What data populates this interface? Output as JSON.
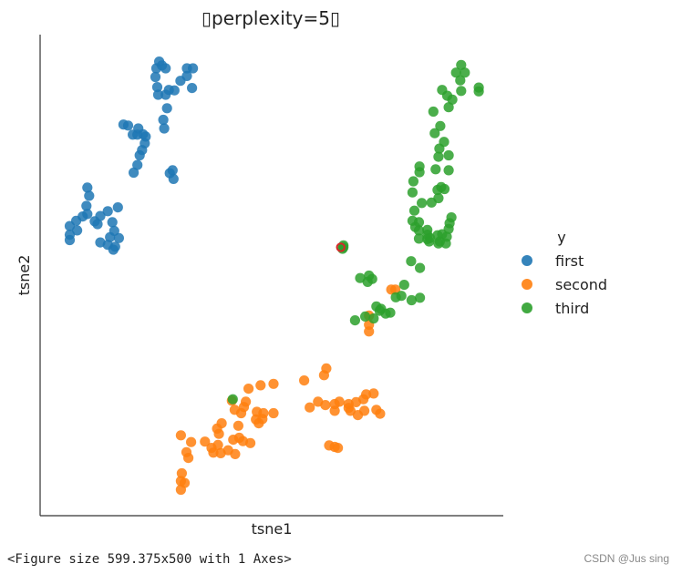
{
  "chart_data": {
    "type": "scatter",
    "title": "perplexity=5",
    "title_glyph": "▯",
    "xlabel": "tsne1",
    "ylabel": "tsne2",
    "xlim": [
      0,
      100
    ],
    "ylim": [
      0,
      100
    ],
    "grid": false,
    "legend_title": "y",
    "legend_position": "right",
    "series": [
      {
        "name": "first",
        "color": "#1f77b4",
        "points": [
          [
            25.7,
            94.4
          ],
          [
            26.3,
            93.6
          ],
          [
            25.1,
            93.0
          ],
          [
            27.1,
            93.0
          ],
          [
            31.7,
            93.0
          ],
          [
            33.0,
            93.0
          ],
          [
            31.7,
            91.4
          ],
          [
            24.9,
            91.2
          ],
          [
            30.3,
            90.4
          ],
          [
            25.3,
            89.1
          ],
          [
            27.8,
            88.5
          ],
          [
            32.8,
            88.9
          ],
          [
            25.5,
            87.5
          ],
          [
            27.1,
            87.5
          ],
          [
            29.0,
            88.4
          ],
          [
            27.4,
            84.7
          ],
          [
            26.6,
            82.3
          ],
          [
            26.8,
            80.5
          ],
          [
            18.0,
            81.3
          ],
          [
            19.0,
            81.1
          ],
          [
            21.2,
            80.5
          ],
          [
            20.0,
            79.2
          ],
          [
            21.0,
            79.2
          ],
          [
            22.2,
            79.3
          ],
          [
            22.8,
            78.8
          ],
          [
            22.6,
            77.4
          ],
          [
            22.0,
            76.0
          ],
          [
            21.5,
            74.9
          ],
          [
            21.0,
            72.9
          ],
          [
            20.2,
            71.3
          ],
          [
            28.0,
            71.2
          ],
          [
            28.6,
            71.8
          ],
          [
            28.8,
            70.0
          ],
          [
            10.2,
            68.2
          ],
          [
            10.6,
            66.5
          ],
          [
            10.0,
            64.4
          ],
          [
            9.2,
            62.2
          ],
          [
            14.6,
            63.3
          ],
          [
            16.8,
            64.1
          ],
          [
            10.2,
            62.7
          ],
          [
            11.8,
            61.2
          ],
          [
            13.0,
            62.3
          ],
          [
            12.4,
            60.6
          ],
          [
            7.8,
            61.3
          ],
          [
            6.4,
            60.2
          ],
          [
            8.0,
            59.3
          ],
          [
            6.4,
            58.4
          ],
          [
            15.6,
            61.0
          ],
          [
            16.0,
            59.2
          ],
          [
            15.1,
            57.9
          ],
          [
            17.0,
            57.7
          ],
          [
            16.2,
            55.9
          ],
          [
            14.6,
            56.3
          ],
          [
            13.0,
            56.8
          ],
          [
            6.4,
            57.3
          ],
          [
            15.8,
            55.3
          ]
        ]
      },
      {
        "name": "second",
        "color": "#ff7f0e",
        "points": [
          [
            75.8,
            47.0
          ],
          [
            76.7,
            47.0
          ],
          [
            71.0,
            41.6
          ],
          [
            71.0,
            39.7
          ],
          [
            71.0,
            38.3
          ],
          [
            61.3,
            29.2
          ],
          [
            61.8,
            30.6
          ],
          [
            57.0,
            28.1
          ],
          [
            47.6,
            27.1
          ],
          [
            50.4,
            27.4
          ],
          [
            45.0,
            26.4
          ],
          [
            70.4,
            25.2
          ],
          [
            72.0,
            25.4
          ],
          [
            64.6,
            23.7
          ],
          [
            63.6,
            23.2
          ],
          [
            66.6,
            23.2
          ],
          [
            66.6,
            22.4
          ],
          [
            68.2,
            23.6
          ],
          [
            69.8,
            24.2
          ],
          [
            60.0,
            23.7
          ],
          [
            61.6,
            23.0
          ],
          [
            58.2,
            22.5
          ],
          [
            70.0,
            21.8
          ],
          [
            67.0,
            21.8
          ],
          [
            72.6,
            22.0
          ],
          [
            73.4,
            21.2
          ],
          [
            68.6,
            20.9
          ],
          [
            63.6,
            21.8
          ],
          [
            44.4,
            23.7
          ],
          [
            44.0,
            22.6
          ],
          [
            43.4,
            21.3
          ],
          [
            41.4,
            23.9
          ],
          [
            42.0,
            22.0
          ],
          [
            46.8,
            21.6
          ],
          [
            48.2,
            21.3
          ],
          [
            48.0,
            20.1
          ],
          [
            46.6,
            20.0
          ],
          [
            50.4,
            21.3
          ],
          [
            47.2,
            19.2
          ],
          [
            42.8,
            18.7
          ],
          [
            39.2,
            19.2
          ],
          [
            38.2,
            18.1
          ],
          [
            38.6,
            17.0
          ],
          [
            41.7,
            15.8
          ],
          [
            45.4,
            15.1
          ],
          [
            43.0,
            16.2
          ],
          [
            43.8,
            15.5
          ],
          [
            35.6,
            15.4
          ],
          [
            37.0,
            14.1
          ],
          [
            38.4,
            14.7
          ],
          [
            37.4,
            13.1
          ],
          [
            39.0,
            13.0
          ],
          [
            40.6,
            13.6
          ],
          [
            42.1,
            12.8
          ],
          [
            63.6,
            14.3
          ],
          [
            64.3,
            14.1
          ],
          [
            62.4,
            14.6
          ],
          [
            32.6,
            15.3
          ],
          [
            30.4,
            16.7
          ],
          [
            31.6,
            13.2
          ],
          [
            32.0,
            12.0
          ],
          [
            30.6,
            8.8
          ],
          [
            30.4,
            7.2
          ],
          [
            31.2,
            6.8
          ],
          [
            30.4,
            5.4
          ]
        ]
      },
      {
        "name": "third",
        "color": "#2ca02c",
        "points": [
          [
            90.9,
            93.7
          ],
          [
            89.8,
            92.1
          ],
          [
            91.7,
            92.1
          ],
          [
            90.7,
            90.5
          ],
          [
            94.7,
            89.0
          ],
          [
            94.7,
            88.2
          ],
          [
            86.8,
            88.5
          ],
          [
            87.9,
            87.3
          ],
          [
            89.0,
            86.5
          ],
          [
            90.9,
            88.3
          ],
          [
            88.2,
            84.9
          ],
          [
            84.9,
            84.0
          ],
          [
            86.4,
            81.0
          ],
          [
            85.2,
            79.5
          ],
          [
            87.2,
            77.7
          ],
          [
            86.2,
            76.3
          ],
          [
            86.0,
            74.6
          ],
          [
            88.2,
            74.9
          ],
          [
            85.4,
            72.0
          ],
          [
            81.9,
            72.6
          ],
          [
            81.9,
            71.4
          ],
          [
            80.6,
            69.5
          ],
          [
            88.2,
            71.8
          ],
          [
            86.6,
            68.3
          ],
          [
            85.8,
            67.7
          ],
          [
            87.3,
            67.9
          ],
          [
            80.4,
            67.2
          ],
          [
            86.0,
            66.0
          ],
          [
            84.5,
            65.1
          ],
          [
            82.4,
            65.0
          ],
          [
            80.8,
            63.4
          ],
          [
            80.4,
            61.3
          ],
          [
            81.8,
            61.0
          ],
          [
            81.0,
            60.0
          ],
          [
            81.8,
            59.3
          ],
          [
            81.8,
            57.6
          ],
          [
            88.8,
            62.0
          ],
          [
            88.4,
            60.8
          ],
          [
            88.2,
            59.6
          ],
          [
            86.8,
            58.5
          ],
          [
            87.8,
            58.0
          ],
          [
            86.3,
            57.0
          ],
          [
            83.6,
            59.4
          ],
          [
            83.6,
            58.4
          ],
          [
            83.6,
            57.5
          ],
          [
            84.2,
            57.7
          ],
          [
            85.8,
            58.3
          ],
          [
            87.6,
            56.6
          ],
          [
            86.0,
            56.6
          ],
          [
            84.0,
            57.0
          ],
          [
            80.1,
            52.9
          ],
          [
            82.0,
            51.5
          ],
          [
            71.0,
            49.9
          ],
          [
            71.7,
            49.2
          ],
          [
            69.1,
            49.4
          ],
          [
            70.7,
            48.6
          ],
          [
            78.6,
            48.0
          ],
          [
            78.0,
            45.7
          ],
          [
            76.8,
            45.4
          ],
          [
            80.2,
            44.8
          ],
          [
            82.0,
            45.3
          ],
          [
            72.6,
            43.5
          ],
          [
            73.6,
            43.0
          ],
          [
            72.0,
            41.0
          ],
          [
            74.6,
            42.0
          ],
          [
            75.6,
            42.2
          ],
          [
            73.3,
            42.6
          ],
          [
            68.0,
            40.6
          ],
          [
            70.2,
            41.4
          ],
          [
            65.5,
            56.2
          ],
          [
            65.3,
            55.5
          ],
          [
            65.5,
            55.8
          ],
          [
            41.6,
            24.2
          ]
        ]
      }
    ],
    "outlier_marker": {
      "x": 64.9,
      "y": 55.8,
      "color": "#d62728"
    }
  },
  "caption": "<Figure size 599.375x500 with 1 Axes>",
  "watermark": "CSDN @Jus sing"
}
